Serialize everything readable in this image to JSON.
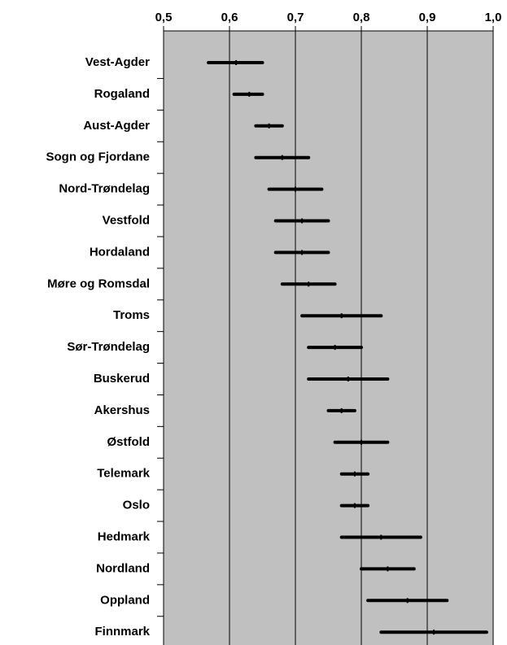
{
  "chart_data": {
    "type": "range",
    "categories": [
      "Vest-Agder",
      "Rogaland",
      "Aust-Agder",
      "Sogn og Fjordane",
      "Nord-Trøndelag",
      "Vestfold",
      "Hordaland",
      "Møre og Romsdal",
      "Troms",
      "Sør-Trøndelag",
      "Buskerud",
      "Akershus",
      "Østfold",
      "Telemark",
      "Oslo",
      "Hedmark",
      "Nordland",
      "Oppland",
      "Finnmark"
    ],
    "low": [
      0.568,
      0.607,
      0.64,
      0.64,
      0.66,
      0.67,
      0.67,
      0.68,
      0.71,
      0.72,
      0.72,
      0.75,
      0.76,
      0.77,
      0.77,
      0.77,
      0.8,
      0.81,
      0.83
    ],
    "mid": [
      0.61,
      0.63,
      0.66,
      0.68,
      0.7,
      0.71,
      0.71,
      0.72,
      0.77,
      0.76,
      0.78,
      0.77,
      0.8,
      0.79,
      0.79,
      0.83,
      0.84,
      0.87,
      0.91
    ],
    "high": [
      0.65,
      0.65,
      0.68,
      0.72,
      0.74,
      0.75,
      0.75,
      0.76,
      0.83,
      0.8,
      0.84,
      0.79,
      0.84,
      0.81,
      0.81,
      0.89,
      0.88,
      0.93,
      0.99
    ],
    "color": "#000000",
    "background": "#c0c0c0",
    "xlim": [
      0.5,
      1.0
    ],
    "xticks": [
      {
        "value": 0.5,
        "label": "0,5"
      },
      {
        "value": 0.6,
        "label": "0,6"
      },
      {
        "value": 0.7,
        "label": "0,7"
      },
      {
        "value": 0.8,
        "label": "0,8"
      },
      {
        "value": 0.9,
        "label": "0,9"
      },
      {
        "value": 1.0,
        "label": "1,0"
      }
    ],
    "grid": true
  }
}
